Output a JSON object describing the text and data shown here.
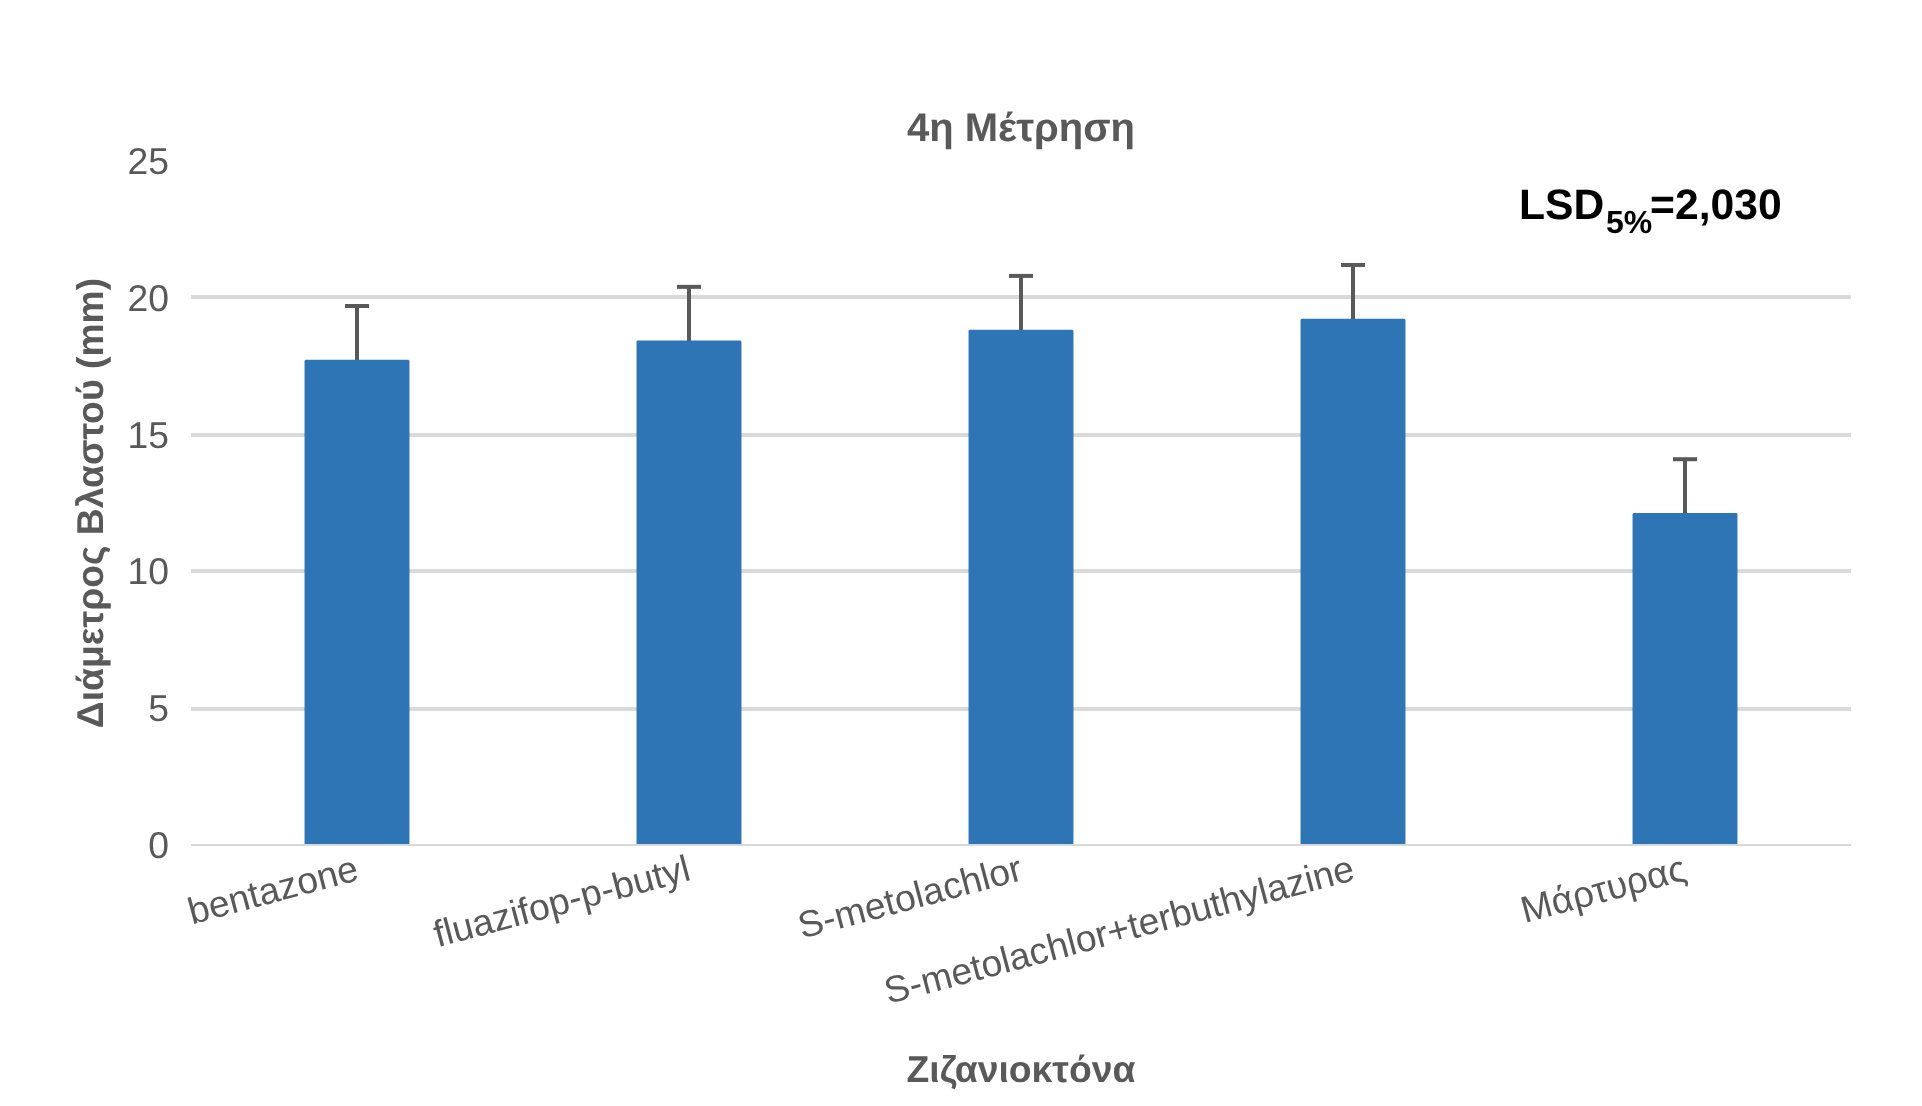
{
  "chart_data": {
    "type": "bar",
    "title": "4η Μέτρηση",
    "xlabel": "Ζιζανιοκτόνα",
    "ylabel": "Διάμετρος Βλαστού (mm)",
    "annotations": [
      "LSD$_{5%}$=2,030"
    ],
    "categories": [
      "bentazone",
      "fluazifop-p-butyl",
      "S-metolachlor",
      "S-metolachlor+terbuthylazine",
      "Μάρτυρας"
    ],
    "values": [
      17.7,
      18.4,
      18.8,
      19.2,
      12.1
    ],
    "errors": [
      2.0,
      2.0,
      2.0,
      2.0,
      2.0
    ],
    "color": "#2e75b6",
    "ylim": [
      0,
      25
    ],
    "yticks": [
      0,
      5,
      10,
      15,
      20,
      25
    ],
    "grid": "y"
  }
}
